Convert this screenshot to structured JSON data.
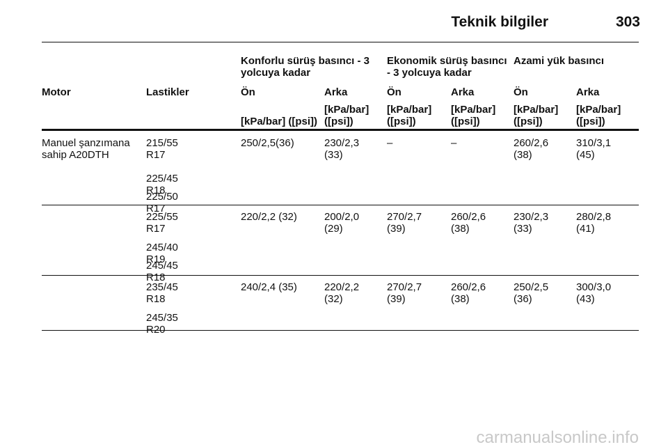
{
  "header": {
    "title": "Teknik bilgiler",
    "page": "303"
  },
  "table": {
    "group_headers": [
      "Konforlu sürüş basıncı - 3 yolcuya kadar",
      "Ekonomik sürüş basıncı - 3 yolcuya kadar",
      "Azami yük basıncı"
    ],
    "column_headers": [
      "Motor",
      "Lastikler",
      "Ön",
      "Arka",
      "Ön",
      "Arka",
      "Ön",
      "Arka"
    ],
    "units": [
      "[kPa/bar] ([psi])",
      "[kPa/bar] ([psi])",
      "[kPa/bar] ([psi])",
      "[kPa/bar] ([psi])",
      "[kPa/bar] ([psi])",
      "[kPa/bar] ([psi])"
    ],
    "groups": [
      {
        "motor": "Manuel şanzımana sahip A20DTH",
        "rows": [
          [
            "215/55 R17",
            "250/2,5(36)",
            "230/2,3 (33)",
            "–",
            "–",
            "260/2,6 (38)",
            "310/3,1 (45)"
          ],
          [
            "225/45 R18"
          ],
          [
            "225/50 R17"
          ]
        ]
      },
      {
        "rows": [
          [
            "225/55 R17",
            "220/2,2 (32)",
            "200/2,0 (29)",
            "270/2,7 (39)",
            "260/2,6 (38)",
            "230/2,3 (33)",
            "280/2,8 (41)"
          ],
          [
            "245/40 R19"
          ],
          [
            "245/45 R18"
          ]
        ]
      },
      {
        "rows": [
          [
            "235/45 R18",
            "240/2,4 (35)",
            "220/2,2 (32)",
            "270/2,7 (39)",
            "260/2,6 (38)",
            "250/2,5 (36)",
            "300/3,0 (43)"
          ],
          [
            "245/35 R20"
          ]
        ]
      }
    ]
  },
  "watermark": "carmanualsonline.info"
}
